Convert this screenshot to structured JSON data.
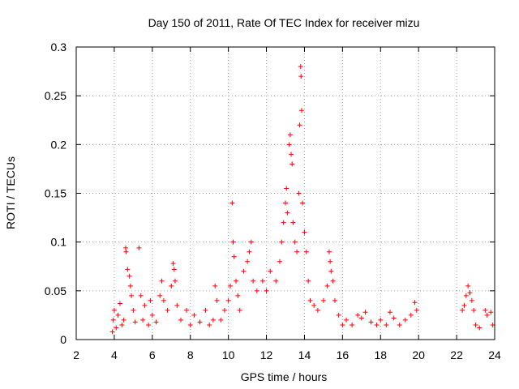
{
  "chart_data": {
    "type": "scatter",
    "title": "Day 150 of 2011, Rate Of TEC Index for receiver mizu",
    "xlabel": "GPS time / hours",
    "ylabel": "ROTI / TECUs",
    "xlim": [
      2,
      24
    ],
    "ylim": [
      0,
      0.3
    ],
    "xticks": [
      2,
      4,
      6,
      8,
      10,
      12,
      14,
      16,
      18,
      20,
      22,
      24
    ],
    "xtick_labels": [
      "2",
      "4",
      "6",
      "8",
      "10",
      "12",
      "14",
      "16",
      "18",
      "20",
      "22",
      "24"
    ],
    "yticks": [
      0,
      0.05,
      0.1,
      0.15,
      0.2,
      0.25,
      0.3
    ],
    "ytick_labels": [
      "0",
      "0.05",
      "0.1",
      "0.15",
      "0.2",
      "0.25",
      "0.3"
    ],
    "grid": true,
    "marker": "+",
    "series": [
      {
        "name": "ROTI",
        "color": "#ff0000",
        "points": [
          [
            3.9,
            0.008
          ],
          [
            3.95,
            0.02
          ],
          [
            4.0,
            0.03
          ],
          [
            4.1,
            0.012
          ],
          [
            4.2,
            0.025
          ],
          [
            4.3,
            0.037
          ],
          [
            4.4,
            0.015
          ],
          [
            4.5,
            0.02
          ],
          [
            4.6,
            0.094
          ],
          [
            4.62,
            0.09
          ],
          [
            4.7,
            0.072
          ],
          [
            4.8,
            0.065
          ],
          [
            4.85,
            0.055
          ],
          [
            4.9,
            0.045
          ],
          [
            5.0,
            0.03
          ],
          [
            5.1,
            0.018
          ],
          [
            5.3,
            0.094
          ],
          [
            5.4,
            0.045
          ],
          [
            5.5,
            0.02
          ],
          [
            5.6,
            0.035
          ],
          [
            5.8,
            0.015
          ],
          [
            5.9,
            0.04
          ],
          [
            6.0,
            0.025
          ],
          [
            6.2,
            0.018
          ],
          [
            6.4,
            0.045
          ],
          [
            6.5,
            0.06
          ],
          [
            6.6,
            0.04
          ],
          [
            6.8,
            0.03
          ],
          [
            7.0,
            0.055
          ],
          [
            7.1,
            0.078
          ],
          [
            7.15,
            0.072
          ],
          [
            7.2,
            0.06
          ],
          [
            7.3,
            0.035
          ],
          [
            7.5,
            0.02
          ],
          [
            7.8,
            0.03
          ],
          [
            8.0,
            0.015
          ],
          [
            8.2,
            0.025
          ],
          [
            8.5,
            0.018
          ],
          [
            8.8,
            0.03
          ],
          [
            9.0,
            0.015
          ],
          [
            9.2,
            0.02
          ],
          [
            9.3,
            0.055
          ],
          [
            9.4,
            0.04
          ],
          [
            9.6,
            0.02
          ],
          [
            9.8,
            0.03
          ],
          [
            10.0,
            0.04
          ],
          [
            10.1,
            0.055
          ],
          [
            10.2,
            0.14
          ],
          [
            10.25,
            0.1
          ],
          [
            10.3,
            0.085
          ],
          [
            10.4,
            0.06
          ],
          [
            10.5,
            0.045
          ],
          [
            10.6,
            0.03
          ],
          [
            10.8,
            0.07
          ],
          [
            11.0,
            0.08
          ],
          [
            11.1,
            0.09
          ],
          [
            11.2,
            0.1
          ],
          [
            11.3,
            0.06
          ],
          [
            11.5,
            0.05
          ],
          [
            11.8,
            0.06
          ],
          [
            12.0,
            0.05
          ],
          [
            12.2,
            0.07
          ],
          [
            12.5,
            0.06
          ],
          [
            12.7,
            0.08
          ],
          [
            12.8,
            0.1
          ],
          [
            12.9,
            0.12
          ],
          [
            13.0,
            0.14
          ],
          [
            13.05,
            0.155
          ],
          [
            13.1,
            0.13
          ],
          [
            13.2,
            0.2
          ],
          [
            13.25,
            0.21
          ],
          [
            13.3,
            0.19
          ],
          [
            13.35,
            0.18
          ],
          [
            13.4,
            0.12
          ],
          [
            13.5,
            0.1
          ],
          [
            13.6,
            0.09
          ],
          [
            13.7,
            0.15
          ],
          [
            13.75,
            0.22
          ],
          [
            13.8,
            0.28
          ],
          [
            13.82,
            0.27
          ],
          [
            13.85,
            0.235
          ],
          [
            13.9,
            0.14
          ],
          [
            14.0,
            0.11
          ],
          [
            14.1,
            0.09
          ],
          [
            14.2,
            0.06
          ],
          [
            14.3,
            0.04
          ],
          [
            14.5,
            0.035
          ],
          [
            14.7,
            0.03
          ],
          [
            15.0,
            0.04
          ],
          [
            15.2,
            0.055
          ],
          [
            15.3,
            0.09
          ],
          [
            15.35,
            0.08
          ],
          [
            15.4,
            0.07
          ],
          [
            15.5,
            0.06
          ],
          [
            15.6,
            0.04
          ],
          [
            15.8,
            0.025
          ],
          [
            16.0,
            0.015
          ],
          [
            16.2,
            0.02
          ],
          [
            16.5,
            0.015
          ],
          [
            16.8,
            0.025
          ],
          [
            17.0,
            0.022
          ],
          [
            17.2,
            0.028
          ],
          [
            17.5,
            0.018
          ],
          [
            17.8,
            0.015
          ],
          [
            18.0,
            0.02
          ],
          [
            18.3,
            0.015
          ],
          [
            18.5,
            0.028
          ],
          [
            18.7,
            0.022
          ],
          [
            19.0,
            0.015
          ],
          [
            19.3,
            0.02
          ],
          [
            19.6,
            0.025
          ],
          [
            19.8,
            0.038
          ],
          [
            19.9,
            0.03
          ],
          [
            22.3,
            0.03
          ],
          [
            22.4,
            0.035
          ],
          [
            22.5,
            0.045
          ],
          [
            22.6,
            0.055
          ],
          [
            22.7,
            0.048
          ],
          [
            22.8,
            0.04
          ],
          [
            22.9,
            0.03
          ],
          [
            23.0,
            0.015
          ],
          [
            23.2,
            0.012
          ],
          [
            23.5,
            0.03
          ],
          [
            23.6,
            0.025
          ],
          [
            23.8,
            0.028
          ],
          [
            23.9,
            0.015
          ]
        ]
      }
    ]
  }
}
